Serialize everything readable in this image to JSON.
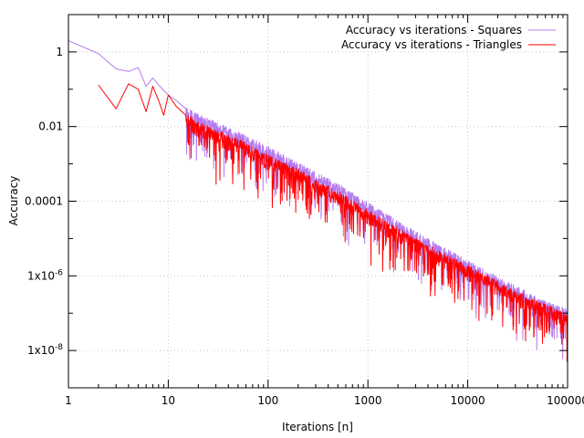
{
  "chart_data": {
    "type": "line",
    "title": "",
    "xlabel": "Iterations [n]",
    "ylabel": "Accuracy",
    "x_scale": "log",
    "y_scale": "log",
    "xlim": [
      1,
      100000
    ],
    "ylim": [
      1e-09,
      10
    ],
    "grid": true,
    "legend_position": "top-right",
    "x_ticks": [
      {
        "value": 1,
        "label": "1"
      },
      {
        "value": 10,
        "label": "10"
      },
      {
        "value": 100,
        "label": "100"
      },
      {
        "value": 1000,
        "label": "1000"
      },
      {
        "value": 10000,
        "label": "10000"
      },
      {
        "value": 100000,
        "label": "100000"
      }
    ],
    "y_ticks": [
      {
        "value": 1,
        "label": "1"
      },
      {
        "value": 0.01,
        "label": "0.01"
      },
      {
        "value": 0.0001,
        "label": "0.0001"
      },
      {
        "value": 1e-06,
        "label": "1x10-6"
      },
      {
        "value": 1e-08,
        "label": "1x10-8"
      }
    ],
    "series": [
      {
        "name": "Accuracy vs iterations - Squares",
        "color": "#b57bee",
        "x": [
          1,
          2,
          3,
          4,
          5,
          6,
          7,
          8,
          10,
          12,
          15,
          20,
          30,
          50,
          100,
          200,
          500,
          1000,
          2000,
          5000,
          10000,
          20000,
          50000,
          90000,
          100000
        ],
        "y": [
          2.0,
          0.9,
          0.35,
          0.3,
          0.38,
          0.12,
          0.2,
          0.13,
          0.07,
          0.05,
          0.03,
          0.018,
          0.011,
          0.006,
          0.0025,
          0.0009,
          0.00025,
          8e-05,
          2.5e-05,
          6e-06,
          2.2e-06,
          8e-07,
          2.2e-07,
          1.2e-07,
          1.1e-07
        ]
      },
      {
        "name": "Accuracy vs iterations - Triangles",
        "color": "#ff0000",
        "x": [
          2,
          3,
          4,
          5,
          6,
          7,
          8,
          9,
          10,
          12,
          15,
          20,
          30,
          50,
          100,
          200,
          500,
          1000,
          2000,
          5000,
          10000,
          20000,
          50000,
          90000,
          100000
        ],
        "y": [
          0.13,
          0.03,
          0.14,
          0.1,
          0.025,
          0.12,
          0.05,
          0.02,
          0.07,
          0.035,
          0.02,
          0.011,
          0.007,
          0.004,
          0.0015,
          0.0006,
          0.00016,
          5e-05,
          1.6e-05,
          4.2e-06,
          1.6e-06,
          6e-07,
          1.8e-07,
          9e-08,
          7e-08
        ]
      }
    ]
  }
}
